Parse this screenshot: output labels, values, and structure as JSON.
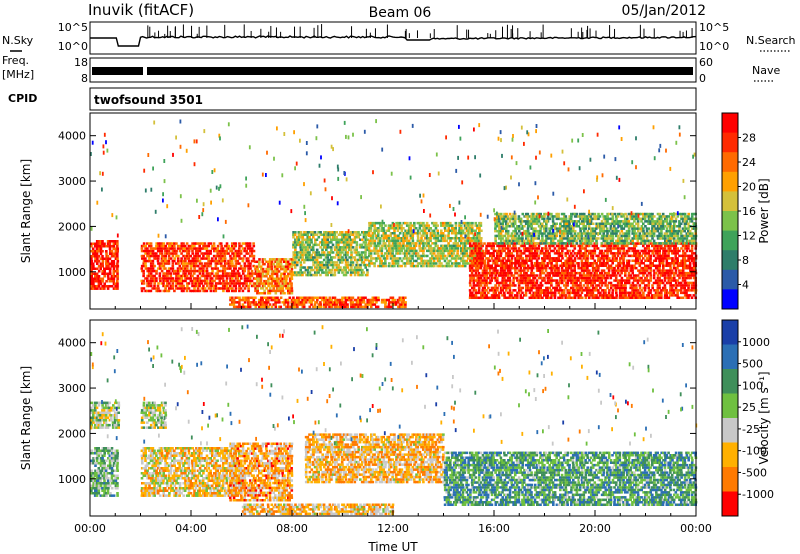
{
  "header": {
    "station": "Inuvik (fitACF)",
    "beam": "Beam 06",
    "date": "05/Jan/2012"
  },
  "strip": {
    "nsky_label": "N.Sky",
    "nsearch_label": "N.Search",
    "freq_label_1": "Freq.",
    "freq_label_2": "[MHz]",
    "nave_label": "Nave",
    "cpid_label": "CPID",
    "cpid_value": "twofsound 3501",
    "noise_ticks": [
      "10^5",
      "10^0"
    ],
    "freq_ticks": [
      "18",
      "8"
    ],
    "nave_ticks": [
      "60",
      "0"
    ]
  },
  "chart_data": [
    {
      "type": "heatmap",
      "panel": "power",
      "xlabel": "Time UT",
      "ylabel": "Slant Range [km]",
      "x_ticks": [
        "00:00",
        "04:00",
        "08:00",
        "12:00",
        "16:00",
        "20:00",
        "00:00"
      ],
      "y_ticks": [
        1000,
        2000,
        3000,
        4000
      ],
      "ylim": [
        180,
        4500
      ],
      "colorbar": {
        "label": "Power [dB]",
        "ticks": [
          "28",
          "24",
          "20",
          "16",
          "12",
          "8",
          "4"
        ],
        "colors": [
          "#ff0000",
          "#ff2a00",
          "#ff6a00",
          "#ffa000",
          "#d4c03a",
          "#7cc24a",
          "#3fa35a",
          "#2e7d6a",
          "#2b5aa8",
          "#0000ff"
        ]
      },
      "regions": [
        {
          "t0": 0.0,
          "t1": 1.1,
          "r0": 600,
          "r1": 1700,
          "level": 0.95
        },
        {
          "t0": 2.0,
          "t1": 6.5,
          "r0": 550,
          "r1": 1650,
          "level": 0.9
        },
        {
          "t0": 6.5,
          "t1": 8.0,
          "r0": 500,
          "r1": 1300,
          "level": 0.75
        },
        {
          "t0": 5.5,
          "t1": 12.5,
          "r0": 200,
          "r1": 450,
          "level": 0.85
        },
        {
          "t0": 8.0,
          "t1": 11.0,
          "r0": 900,
          "r1": 1900,
          "level": 0.45
        },
        {
          "t0": 11.0,
          "t1": 15.5,
          "r0": 1100,
          "r1": 2100,
          "level": 0.5
        },
        {
          "t0": 15.0,
          "t1": 24.0,
          "r0": 400,
          "r1": 1650,
          "level": 0.95
        },
        {
          "t0": 16.0,
          "t1": 24.0,
          "r0": 1600,
          "r1": 2300,
          "level": 0.4
        }
      ]
    },
    {
      "type": "heatmap",
      "panel": "velocity",
      "xlabel": "Time UT",
      "ylabel": "Slant Range [km]",
      "x_ticks": [
        "00:00",
        "04:00",
        "08:00",
        "12:00",
        "16:00",
        "20:00",
        "00:00"
      ],
      "y_ticks": [
        1000,
        2000,
        3000,
        4000
      ],
      "ylim": [
        180,
        4500
      ],
      "colorbar": {
        "label": "Velocity [m s⁻¹]",
        "ticks": [
          "1000",
          "500",
          "100",
          "25",
          "-25",
          "-100",
          "-500",
          "-1000"
        ],
        "colors": [
          "#1a3fa8",
          "#2b6fb5",
          "#3f8f5a",
          "#6fc040",
          "#c8c8c8",
          "#ffb000",
          "#ff7a00",
          "#ff0000"
        ]
      },
      "regions": [
        {
          "t0": 0.0,
          "t1": 1.1,
          "r0": 600,
          "r1": 1700,
          "level": 0.6
        },
        {
          "t0": 2.0,
          "t1": 6.0,
          "r0": 600,
          "r1": 1700,
          "level": 0.35
        },
        {
          "t0": 5.5,
          "t1": 8.0,
          "r0": 500,
          "r1": 1800,
          "level": 0.25
        },
        {
          "t0": 6.0,
          "t1": 12.0,
          "r0": 200,
          "r1": 450,
          "level": 0.3
        },
        {
          "t0": 8.5,
          "t1": 14.0,
          "r0": 900,
          "r1": 2000,
          "level": 0.3
        },
        {
          "t0": 14.0,
          "t1": 24.0,
          "r0": 400,
          "r1": 1600,
          "level": 0.7
        },
        {
          "t0": 0.0,
          "t1": 3.0,
          "r0": 2100,
          "r1": 2700,
          "level": 0.5
        }
      ]
    }
  ]
}
